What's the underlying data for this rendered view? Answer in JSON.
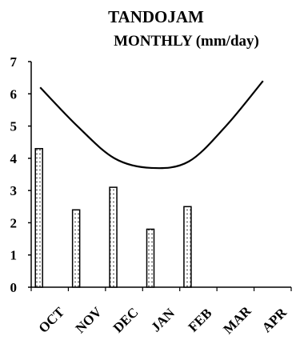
{
  "chart_data": {
    "type": "bar",
    "title": "TANDOJAM",
    "subtitle": "MONTHLY (mm/day)",
    "categories": [
      "OCT",
      "NOV",
      "DEC",
      "JAN",
      "FEB",
      "MAR",
      "APR"
    ],
    "series": [
      {
        "kind": "bar",
        "values": [
          4.3,
          2.4,
          3.1,
          1.8,
          2.5,
          null,
          null
        ]
      },
      {
        "kind": "line",
        "values": [
          6.2,
          5.0,
          4.0,
          3.7,
          3.9,
          5.0,
          6.4
        ]
      }
    ],
    "ylim": [
      0,
      7
    ],
    "yticks": [
      0,
      1,
      2,
      3,
      4,
      5,
      6,
      7
    ],
    "grid": false,
    "bar_fill": "dotted",
    "colors": {
      "axis": "#000000",
      "line": "#000000",
      "bar_border": "#000000",
      "bar_fill": "#ffffff"
    }
  }
}
